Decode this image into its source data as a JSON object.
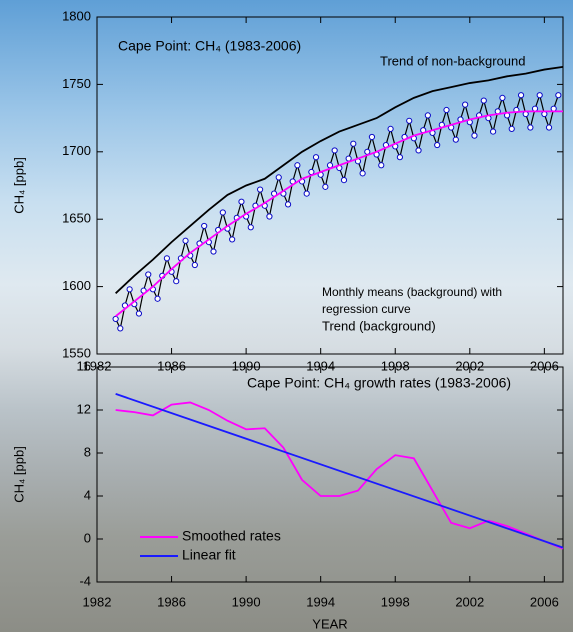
{
  "chart_data": [
    {
      "type": "line",
      "title": "Cape Point: CH₄ (1983-2006)",
      "ylabel": "CH₄ [ppb]",
      "xlim": [
        1982,
        2007
      ],
      "xticks": [
        1982,
        1986,
        1990,
        1994,
        1998,
        2002,
        2006
      ],
      "ylim": [
        1550,
        1800
      ],
      "yticks": [
        1550,
        1600,
        1650,
        1700,
        1750,
        1800
      ],
      "annotations": [
        "Monthly means (background) with",
        "regression curve"
      ],
      "series": [
        {
          "color": "#0a0ac8",
          "marker": "circle",
          "x": [
            1983,
            1983.25,
            1983.5,
            1983.75,
            1984,
            1984.25,
            1984.5,
            1984.75,
            1985,
            1985.25,
            1985.5,
            1985.75,
            1986,
            1986.25,
            1986.5,
            1986.75,
            1987,
            1987.25,
            1987.5,
            1987.75,
            1988,
            1988.25,
            1988.5,
            1988.75,
            1989,
            1989.25,
            1989.5,
            1989.75,
            1990,
            1990.25,
            1990.5,
            1990.75,
            1991,
            1991.25,
            1991.5,
            1991.75,
            1992,
            1992.25,
            1992.5,
            1992.75,
            1993,
            1993.25,
            1993.5,
            1993.75,
            1994,
            1994.25,
            1994.5,
            1994.75,
            1995,
            1995.25,
            1995.5,
            1995.75,
            1996,
            1996.25,
            1996.5,
            1996.75,
            1997,
            1997.25,
            1997.5,
            1997.75,
            1998,
            1998.25,
            1998.5,
            1998.75,
            1999,
            1999.25,
            1999.5,
            1999.75,
            2000,
            2000.25,
            2000.5,
            2000.75,
            2001,
            2001.25,
            2001.5,
            2001.75,
            2002,
            2002.25,
            2002.5,
            2002.75,
            2003,
            2003.25,
            2003.5,
            2003.75,
            2004,
            2004.25,
            2004.5,
            2004.75,
            2005,
            2005.25,
            2005.5,
            2005.75,
            2006,
            2006.25,
            2006.5,
            2006.75
          ],
          "values": [
            1576,
            1569,
            1586,
            1598,
            1587,
            1580,
            1597,
            1609,
            1598,
            1591,
            1608,
            1621,
            1611,
            1604,
            1621,
            1634,
            1623,
            1616,
            1632,
            1645,
            1633,
            1626,
            1642,
            1655,
            1643,
            1635,
            1651,
            1663,
            1652,
            1644,
            1660,
            1672,
            1660,
            1652,
            1669,
            1681,
            1669,
            1661,
            1678,
            1690,
            1678,
            1669,
            1685,
            1696,
            1683,
            1674,
            1690,
            1701,
            1688,
            1679,
            1695,
            1706,
            1693,
            1684,
            1700,
            1711,
            1698,
            1690,
            1705,
            1717,
            1704,
            1696,
            1711,
            1723,
            1710,
            1701,
            1716,
            1727,
            1714,
            1705,
            1720,
            1731,
            1718,
            1709,
            1724,
            1735,
            1722,
            1712,
            1727,
            1738,
            1725,
            1715,
            1730,
            1740,
            1727,
            1717,
            1731,
            1742,
            1728,
            1718,
            1732,
            1742,
            1728,
            1718,
            1732,
            1742
          ]
        },
        {
          "name": "Trend of non-background",
          "color": "#000000",
          "x": [
            1983,
            1984,
            1985,
            1986,
            1987,
            1988,
            1989,
            1990,
            1991,
            1992,
            1993,
            1994,
            1995,
            1996,
            1997,
            1998,
            1999,
            2000,
            2001,
            2002,
            2003,
            2004,
            2005,
            2006,
            2007
          ],
          "values": [
            1595,
            1608,
            1620,
            1633,
            1645,
            1657,
            1668,
            1675,
            1680,
            1690,
            1700,
            1708,
            1715,
            1720,
            1725,
            1733,
            1740,
            1745,
            1748,
            1751,
            1753,
            1756,
            1758,
            1761,
            1763
          ]
        },
        {
          "name": "Trend (background)",
          "color": "#ff00ff",
          "x": [
            1983,
            1984,
            1985,
            1986,
            1987,
            1988,
            1989,
            1990,
            1991,
            1992,
            1993,
            1994,
            1995,
            1996,
            1997,
            1998,
            1999,
            2000,
            2001,
            2002,
            2003,
            2004,
            2005,
            2006,
            2007
          ],
          "values": [
            1578,
            1589,
            1600,
            1613,
            1625,
            1635,
            1645,
            1654,
            1662,
            1671,
            1680,
            1685,
            1690,
            1695,
            1700,
            1706,
            1712,
            1716,
            1720,
            1724,
            1727,
            1729,
            1730,
            1730,
            1730
          ]
        }
      ]
    },
    {
      "type": "line",
      "title": "Cape Point: CH₄ growth rates (1983-2006)",
      "ylabel": "CH₄ [ppb]",
      "xlabel": "YEAR",
      "xlim": [
        1982,
        2007
      ],
      "xticks": [
        1982,
        1986,
        1990,
        1994,
        1998,
        2002,
        2006
      ],
      "ylim": [
        -4,
        16
      ],
      "yticks": [
        -4,
        0,
        4,
        8,
        12,
        16
      ],
      "series": [
        {
          "name": "Smoothed rates",
          "color": "#ff00ff",
          "x": [
            1983,
            1984,
            1985,
            1986,
            1987,
            1988,
            1989,
            1990,
            1991,
            1992,
            1993,
            1994,
            1995,
            1996,
            1997,
            1998,
            1999,
            2000,
            2001,
            2002,
            2003,
            2004,
            2005,
            2006,
            2007
          ],
          "values": [
            12,
            11.8,
            11.5,
            12.5,
            12.7,
            12,
            11,
            10.2,
            10.3,
            8.5,
            5.5,
            4,
            4,
            4.5,
            6.5,
            7.8,
            7.5,
            4.5,
            1.5,
            1,
            1.7,
            1.2,
            0.5,
            -0.2,
            -0.9
          ]
        },
        {
          "name": "Linear fit",
          "color": "#1a1aff",
          "x": [
            1983,
            2007
          ],
          "values": [
            13.5,
            -0.8
          ]
        }
      ]
    }
  ]
}
